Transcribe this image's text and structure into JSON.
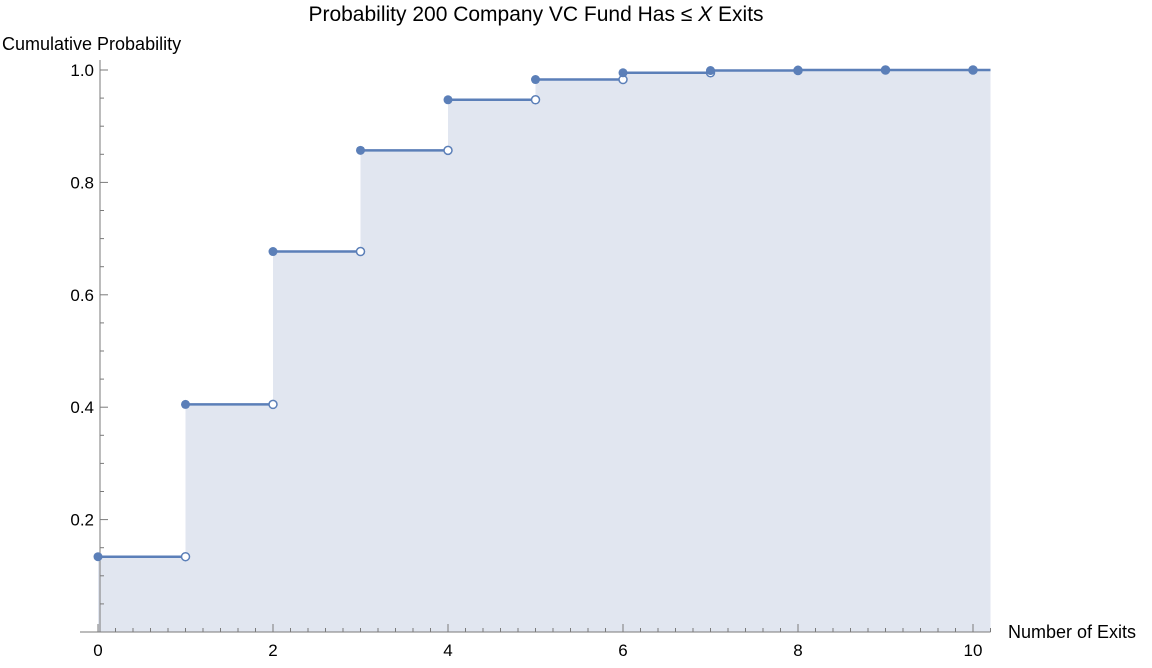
{
  "chart_data": {
    "type": "step",
    "title_parts": [
      "Probability 200 Company VC Fund Has ≤ ",
      "X",
      " Exits"
    ],
    "xlabel": "Number of Exits",
    "ylabel": "Cumulative Probability",
    "xlim": [
      0,
      10.2
    ],
    "ylim": [
      0,
      1.0
    ],
    "x_ticks": [
      0,
      2,
      4,
      6,
      8,
      10
    ],
    "y_ticks": [
      0.2,
      0.4,
      0.6,
      0.8,
      1.0
    ],
    "y_tick_labels": [
      "0.2",
      "0.4",
      "0.6",
      "0.8",
      "1.0"
    ],
    "x": [
      0,
      1,
      2,
      3,
      4,
      5,
      6,
      7,
      8,
      9,
      10
    ],
    "y": [
      0.134,
      0.405,
      0.677,
      0.857,
      0.947,
      0.983,
      0.995,
      0.999,
      1.0,
      1.0,
      1.0
    ],
    "grid": false,
    "colors": {
      "line": "#5b7fb8",
      "fill": "#e1e6f0",
      "axis": "#7a7a7a"
    }
  }
}
